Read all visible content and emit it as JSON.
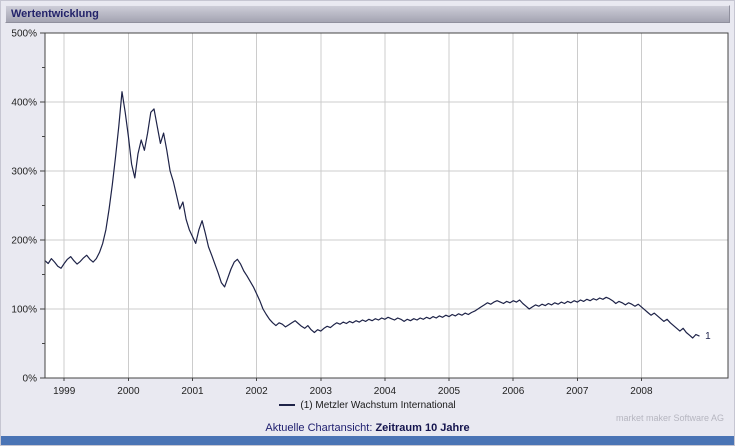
{
  "window": {
    "title": "Wertentwicklung"
  },
  "chart_data": {
    "type": "line",
    "title": "Wertentwicklung",
    "xlabel": "",
    "ylabel": "",
    "xlim": [
      1998.7,
      2009.35
    ],
    "ylim": [
      0,
      500
    ],
    "x_ticks": [
      1999,
      2000,
      2001,
      2002,
      2003,
      2004,
      2005,
      2006,
      2007,
      2008
    ],
    "y_tick_labels": [
      "0%",
      "100%",
      "200%",
      "300%",
      "400%",
      "500%"
    ],
    "y_major_step": 100,
    "y_minor_step": 50,
    "grid": true,
    "grid_color": "#cccccc",
    "axis_color": "#444444",
    "legend_position": "bottom",
    "x_start": 1998.7,
    "x_step": 0.05,
    "end_label": "1",
    "series": [
      {
        "name": "(1) Metzler Wachstum International",
        "color": "#1e2348",
        "values": [
          170,
          166,
          173,
          168,
          162,
          159,
          166,
          172,
          176,
          170,
          165,
          169,
          174,
          178,
          172,
          168,
          173,
          182,
          195,
          215,
          245,
          280,
          320,
          365,
          415,
          385,
          350,
          310,
          290,
          325,
          345,
          330,
          355,
          385,
          390,
          365,
          340,
          355,
          330,
          300,
          285,
          265,
          245,
          255,
          230,
          215,
          205,
          195,
          215,
          228,
          210,
          190,
          178,
          165,
          152,
          138,
          132,
          145,
          158,
          168,
          172,
          165,
          155,
          148,
          140,
          132,
          122,
          112,
          100,
          92,
          85,
          80,
          76,
          80,
          78,
          74,
          77,
          80,
          83,
          79,
          75,
          72,
          76,
          70,
          66,
          70,
          68,
          72,
          75,
          73,
          77,
          80,
          78,
          81,
          79,
          82,
          80,
          83,
          81,
          84,
          82,
          85,
          83,
          86,
          84,
          87,
          85,
          88,
          86,
          84,
          87,
          85,
          82,
          85,
          83,
          86,
          84,
          87,
          85,
          88,
          86,
          89,
          87,
          90,
          88,
          91,
          89,
          92,
          90,
          93,
          91,
          94,
          92,
          95,
          97,
          100,
          103,
          106,
          109,
          107,
          110,
          112,
          110,
          108,
          111,
          109,
          112,
          110,
          113,
          108,
          104,
          100,
          103,
          106,
          104,
          107,
          105,
          108,
          106,
          109,
          107,
          110,
          108,
          111,
          109,
          112,
          110,
          113,
          111,
          114,
          112,
          115,
          113,
          116,
          114,
          117,
          115,
          112,
          108,
          111,
          109,
          106,
          109,
          107,
          104,
          107,
          103,
          99,
          95,
          91,
          94,
          90,
          86,
          82,
          85,
          80,
          76,
          72,
          68,
          72,
          66,
          62,
          58,
          63,
          61
        ]
      }
    ]
  },
  "footer": {
    "caption_prefix": "Aktuelle Chartansicht: ",
    "caption_bold": "Zeitraum 10 Jahre",
    "vendor": "market maker Software AG"
  }
}
